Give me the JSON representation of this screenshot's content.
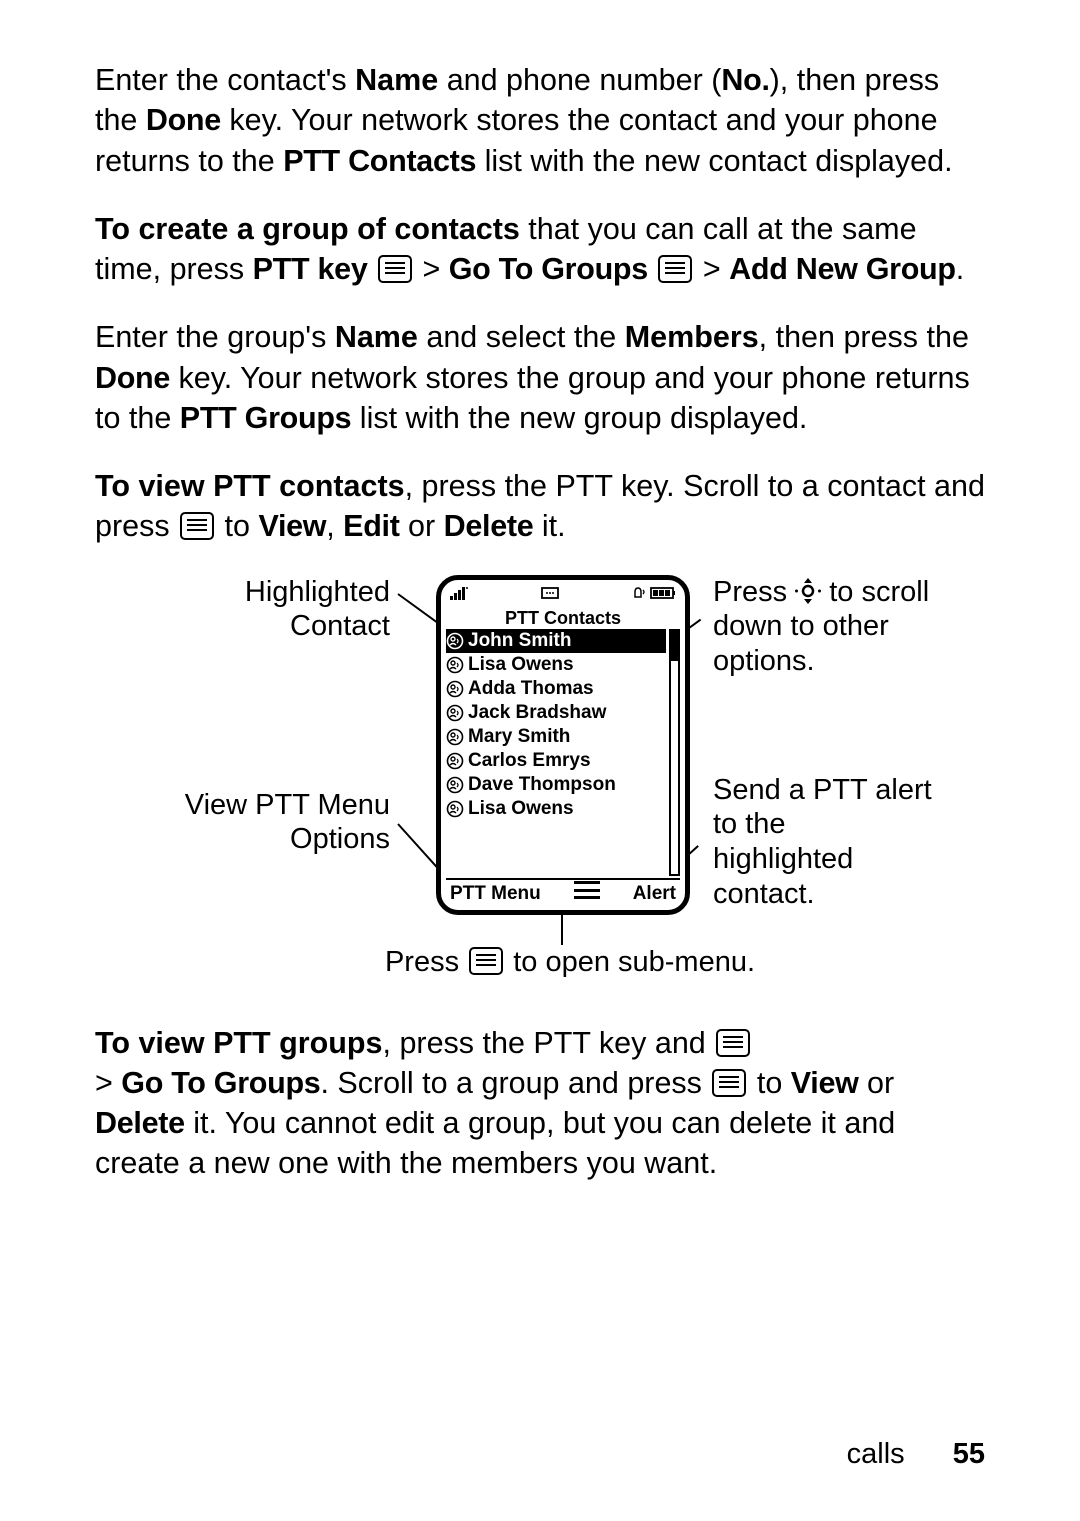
{
  "paragraphs": {
    "p1": {
      "t1": "Enter the contact's ",
      "b1": "Name",
      "t2": " and phone number (",
      "b2": "No.",
      "t3": "), then press the ",
      "b3": "Done",
      "t4": " key. Your network stores the contact and your phone returns to the ",
      "b4": "PTT Contacts",
      "t5": " list with the new contact displayed."
    },
    "p2": {
      "b1": "To create a group of contacts",
      "t1": " that you can call at the same time, press ",
      "b2": "PTT key",
      "t2": " > ",
      "b3": "Go To Groups",
      "t3": " > ",
      "b4": "Add New Group",
      "t4": "."
    },
    "p3": {
      "t1": "Enter the group's ",
      "b1": "Name",
      "t2": " and select the ",
      "b2": "Members",
      "t3": ", then press the ",
      "b3": "Done",
      "t4": " key. Your network stores the group and your phone returns to the ",
      "b4": "PTT Groups",
      "t5": " list with the new group displayed."
    },
    "p4": {
      "b1": "To view PTT contacts",
      "t1": ", press the PTT key. Scroll to a contact and press ",
      "t2": " to ",
      "b2": "View",
      "t3": ", ",
      "b3": "Edit",
      "t4": " or ",
      "b4": "Delete",
      "t5": " it."
    },
    "p5": {
      "b1": "To view PTT groups",
      "t1": ", press the PTT key and ",
      "t2": " > ",
      "b2": "Go To Groups",
      "t3": ". Scroll to a group and press ",
      "t4": " to ",
      "b3": "View",
      "t5": " or ",
      "b4": "Delete",
      "t6": " it. You cannot edit a group, but you can delete it and create a new one with the members you want."
    }
  },
  "phone": {
    "title": "PTT Contacts",
    "contacts": [
      {
        "name": "John Smith",
        "selected": true,
        "muted": false
      },
      {
        "name": "Lisa Owens",
        "selected": false,
        "muted": false
      },
      {
        "name": "Adda Thomas",
        "selected": false,
        "muted": false
      },
      {
        "name": "Jack Bradshaw",
        "selected": false,
        "muted": false
      },
      {
        "name": "Mary Smith",
        "selected": false,
        "muted": false
      },
      {
        "name": "Carlos Emrys",
        "selected": false,
        "muted": true
      },
      {
        "name": "Dave Thompson",
        "selected": false,
        "muted": true
      },
      {
        "name": "Lisa Owens",
        "selected": false,
        "muted": false
      }
    ],
    "softkey_left": "PTT Menu",
    "softkey_right": "Alert"
  },
  "callouts": {
    "c1a": "Highlighted",
    "c1b": "Contact",
    "c2a": "View PTT Menu",
    "c2b": "Options",
    "c3a": "Press ",
    "c3b": " to scroll",
    "c3c": "down to other",
    "c3d": "options.",
    "c4a": "Send a PTT alert",
    "c4b": "to the",
    "c4c": "highlighted",
    "c4d": "contact.",
    "c5a": "Press ",
    "c5b": " to open sub-menu."
  },
  "footer": {
    "section": "calls",
    "page": "55"
  }
}
